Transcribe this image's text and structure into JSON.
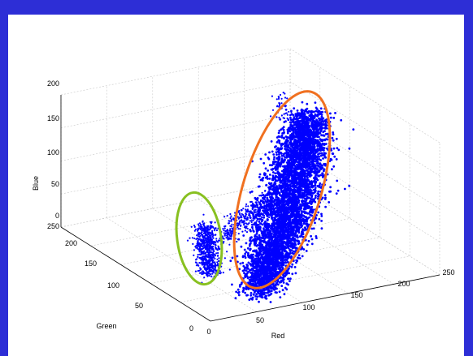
{
  "chart_data": {
    "type": "scatter",
    "projection": "3d",
    "title": "",
    "axes": {
      "red": {
        "label": "Red",
        "range": [
          0,
          250
        ],
        "ticks": [
          "0",
          "50",
          "100",
          "150",
          "200",
          "250"
        ]
      },
      "green": {
        "label": "Green",
        "range": [
          0,
          250
        ],
        "ticks": [
          "0",
          "50",
          "100",
          "150",
          "200",
          "250"
        ]
      },
      "blue": {
        "label": "Blue",
        "range": [
          0,
          200
        ],
        "ticks": [
          "0",
          "50",
          "100",
          "150",
          "200"
        ]
      }
    },
    "grid": true,
    "point_color": "#0000ff",
    "clusters": [
      {
        "highlight_color": "#88c020",
        "approx_center_rgb": [
          8,
          120,
          40
        ]
      },
      {
        "highlight_color": "#f07020",
        "approx_center_rgb": [
          110,
          90,
          100
        ]
      }
    ]
  },
  "colors": {
    "background_border": "#2d2ed6",
    "canvas": "#ffffff",
    "points": "#0000ff",
    "green_highlight": "#88c020",
    "orange_highlight": "#f07020"
  }
}
